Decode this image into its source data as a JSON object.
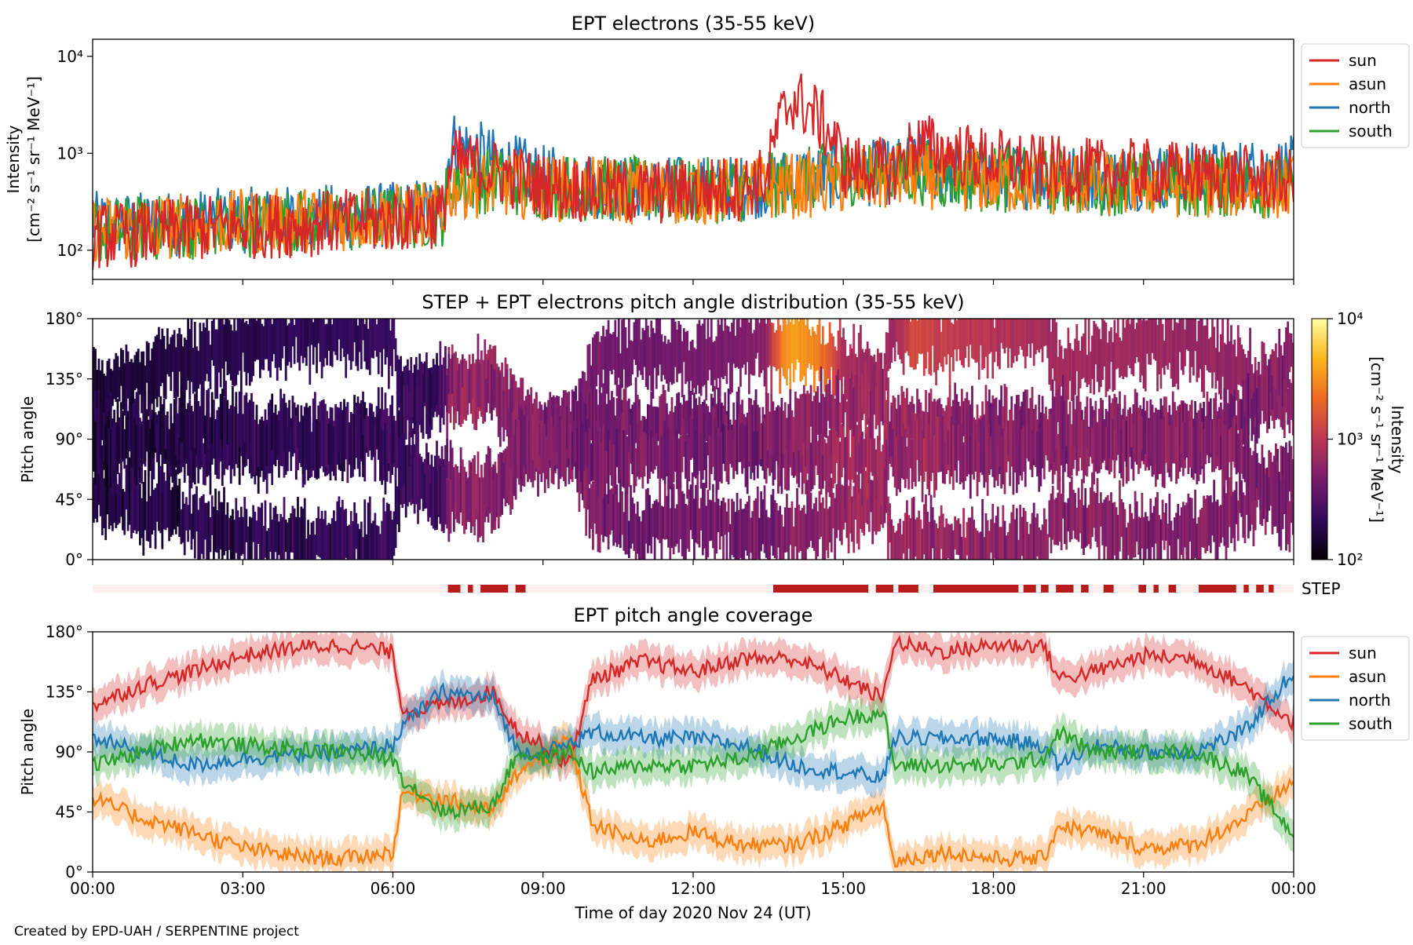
{
  "figure": {
    "credit": "Created by EPD-UAH / SERPENTINE project",
    "x_axis_label": "Time of day 2020 Nov 24 (UT)",
    "x_ticks": [
      "00:00",
      "03:00",
      "06:00",
      "09:00",
      "12:00",
      "15:00",
      "18:00",
      "21:00",
      "00:00"
    ]
  },
  "chart_data": [
    {
      "type": "line",
      "title": "EPT electrons (35-55 keV)",
      "ylabel_line1": "Intensity",
      "ylabel_line2": "[cm⁻² s⁻¹ sr⁻¹ MeV⁻¹]",
      "yscale": "log",
      "ylim": [
        50,
        15000
      ],
      "y_ticks": [
        "10²",
        "10³",
        "10⁴"
      ],
      "xlim_hours": [
        0,
        24
      ],
      "legend_position": "outside-right",
      "x_hours": [
        0,
        1,
        2,
        3,
        4,
        5,
        6,
        7,
        7.2,
        8,
        9,
        10,
        11,
        12,
        13,
        13.5,
        14,
        14.5,
        15,
        16,
        16.5,
        17,
        18,
        19,
        20,
        21,
        22,
        23,
        24
      ],
      "series": [
        {
          "name": "sun",
          "color": "#d62728",
          "values": [
            150,
            160,
            180,
            190,
            200,
            210,
            220,
            250,
            900,
            700,
            500,
            450,
            420,
            450,
            480,
            600,
            4000,
            2500,
            800,
            700,
            1400,
            1100,
            900,
            750,
            700,
            700,
            650,
            600,
            550
          ]
        },
        {
          "name": "asun",
          "color": "#ff7f0e",
          "values": [
            180,
            180,
            200,
            210,
            220,
            230,
            240,
            260,
            500,
            520,
            480,
            450,
            430,
            430,
            450,
            480,
            500,
            520,
            550,
            600,
            650,
            600,
            560,
            540,
            520,
            520,
            510,
            500,
            480
          ]
        },
        {
          "name": "north",
          "color": "#1f77b4",
          "values": [
            200,
            200,
            210,
            220,
            230,
            240,
            250,
            300,
            1400,
            900,
            600,
            500,
            470,
            460,
            480,
            520,
            600,
            620,
            650,
            700,
            800,
            700,
            650,
            620,
            600,
            620,
            650,
            700,
            750
          ]
        },
        {
          "name": "south",
          "color": "#2ca02c",
          "values": [
            170,
            180,
            190,
            200,
            210,
            220,
            230,
            260,
            600,
            550,
            500,
            470,
            450,
            440,
            460,
            490,
            550,
            600,
            700,
            650,
            700,
            620,
            580,
            560,
            540,
            540,
            520,
            510,
            500
          ]
        }
      ]
    },
    {
      "type": "heatmap",
      "title": "STEP + EPT electrons pitch angle distribution (35-55 keV)",
      "ylabel": "Pitch angle",
      "ylim": [
        0,
        180
      ],
      "y_ticks": [
        "0°",
        "45°",
        "90°",
        "135°",
        "180°"
      ],
      "colorbar_label_line1": "Intensity",
      "colorbar_label_line2": "[cm⁻² s⁻¹ sr⁻¹ MeV⁻¹]",
      "colorbar_range": [
        100,
        10000
      ],
      "colorbar_scale": "log",
      "colorbar_ticks": [
        "10²",
        "10³",
        "10⁴"
      ],
      "colormap": "inferno",
      "colormap_stops": [
        "#000004",
        "#320a5e",
        "#781c6d",
        "#bc3754",
        "#ed6925",
        "#fbb61a",
        "#fcffa4"
      ]
    },
    {
      "type": "bar",
      "label": "STEP",
      "description_colors": {
        "off": "#fdf0ec",
        "on": "#b71c1c"
      },
      "on_intervals_hours": [
        [
          7.1,
          7.35
        ],
        [
          7.5,
          7.6
        ],
        [
          7.75,
          8.3
        ],
        [
          8.45,
          8.65
        ],
        [
          13.6,
          15.5
        ],
        [
          15.65,
          16.0
        ],
        [
          16.1,
          16.5
        ],
        [
          16.8,
          18.5
        ],
        [
          18.6,
          18.85
        ],
        [
          18.95,
          19.1
        ],
        [
          19.25,
          19.6
        ],
        [
          19.75,
          19.9
        ],
        [
          20.2,
          20.4
        ],
        [
          20.9,
          21.05
        ],
        [
          21.2,
          21.3
        ],
        [
          21.5,
          21.65
        ],
        [
          22.1,
          22.85
        ],
        [
          23.0,
          23.1
        ],
        [
          23.25,
          23.4
        ],
        [
          23.5,
          23.6
        ],
        [
          24.0,
          24.0
        ]
      ]
    },
    {
      "type": "line",
      "title": "EPT pitch angle coverage",
      "ylabel": "Pitch angle",
      "ylim": [
        0,
        180
      ],
      "y_ticks": [
        "0°",
        "45°",
        "90°",
        "135°",
        "180°"
      ],
      "xlim_hours": [
        0,
        24
      ],
      "legend_position": "outside-right",
      "band_halfwidth_deg": 12,
      "x_hours": [
        0,
        1,
        2,
        3,
        4,
        5,
        6,
        6.2,
        7,
        8,
        8.5,
        9,
        9.5,
        10,
        11,
        12,
        13,
        14,
        15,
        15.8,
        16,
        17,
        18,
        19,
        19.3,
        20,
        21,
        22,
        23,
        24
      ],
      "series": [
        {
          "name": "sun",
          "color": "#d62728",
          "values": [
            125,
            140,
            150,
            162,
            168,
            170,
            165,
            120,
            125,
            135,
            105,
            95,
            80,
            145,
            158,
            150,
            160,
            160,
            145,
            130,
            172,
            165,
            170,
            170,
            145,
            150,
            162,
            160,
            140,
            112
          ]
        },
        {
          "name": "asun",
          "color": "#ff7f0e",
          "values": [
            55,
            40,
            30,
            18,
            12,
            10,
            15,
            60,
            55,
            45,
            75,
            85,
            100,
            35,
            22,
            30,
            20,
            20,
            35,
            50,
            8,
            15,
            10,
            10,
            35,
            30,
            18,
            20,
            40,
            68
          ]
        },
        {
          "name": "north",
          "color": "#1f77b4",
          "values": [
            100,
            90,
            80,
            85,
            88,
            90,
            95,
            110,
            135,
            130,
            90,
            90,
            95,
            105,
            100,
            100,
            95,
            80,
            75,
            70,
            100,
            100,
            100,
            95,
            80,
            95,
            90,
            90,
            105,
            150
          ]
        },
        {
          "name": "south",
          "color": "#2ca02c",
          "values": [
            80,
            90,
            100,
            95,
            92,
            90,
            85,
            70,
            45,
            50,
            90,
            85,
            90,
            75,
            80,
            80,
            85,
            100,
            115,
            120,
            80,
            80,
            80,
            85,
            105,
            90,
            90,
            90,
            75,
            28
          ]
        }
      ]
    }
  ]
}
